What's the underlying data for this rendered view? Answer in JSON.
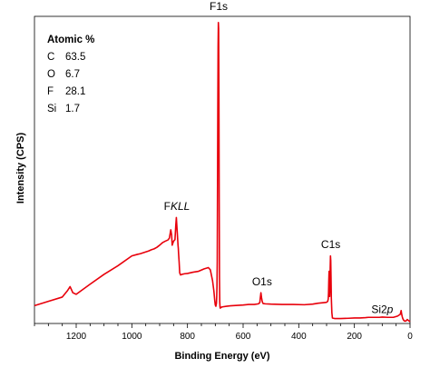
{
  "chart_data": {
    "type": "line",
    "title": "",
    "xlabel": "Binding Energy (eV)",
    "ylabel": "Intensity (CPS)",
    "x_reversed": true,
    "xlim": [
      1350,
      0
    ],
    "ylim": [
      0,
      100
    ],
    "y_ticks_labeled": false,
    "x_ticks": [
      1200,
      1000,
      800,
      600,
      400,
      200,
      0
    ],
    "x_tick_labels": [
      "1200",
      "1000",
      "800",
      "600",
      "400",
      "200",
      "0"
    ],
    "line_color": "#e8000b",
    "series": [
      {
        "x": [
          1350,
          1300,
          1250,
          1232,
          1222,
          1212,
          1200,
          1150,
          1100,
          1050,
          1000,
          980,
          970,
          960,
          950,
          940,
          930,
          920,
          910,
          900,
          890,
          880,
          870,
          865,
          860,
          857,
          855,
          850,
          845,
          842,
          840,
          838,
          836,
          834,
          833,
          832,
          830,
          828,
          825,
          820,
          810,
          800,
          780,
          760,
          740,
          725,
          718,
          710,
          705,
          702,
          700,
          698,
          696,
          695,
          694,
          693,
          692,
          691,
          690,
          689,
          688,
          687,
          686,
          685,
          684,
          683,
          682,
          680,
          675,
          660,
          640,
          620,
          600,
          580,
          560,
          545,
          540,
          538,
          536,
          534,
          532,
          530,
          528,
          520,
          500,
          460,
          420,
          380,
          350,
          330,
          310,
          300,
          296,
          294,
          293,
          292,
          291,
          290,
          289,
          288,
          287,
          286,
          285,
          284,
          283,
          281,
          279,
          270,
          250,
          220,
          200,
          180,
          160,
          150,
          130,
          110,
          100,
          80,
          60,
          45,
          35,
          32,
          30,
          28,
          26,
          24,
          20,
          15,
          10,
          5,
          0
        ],
        "y": [
          5.8,
          7.2,
          8.6,
          10.6,
          12.0,
          10.0,
          9.5,
          12.8,
          16.0,
          18.8,
          22.0,
          22.5,
          22.7,
          23.0,
          23.3,
          23.6,
          24.0,
          24.3,
          24.8,
          25.5,
          26.3,
          26.8,
          27.2,
          27.8,
          30.5,
          28.8,
          25.5,
          26.8,
          27.3,
          32.0,
          34.5,
          31.5,
          28.5,
          25.5,
          24.5,
          22.8,
          20.0,
          16.5,
          15.8,
          16.0,
          16.2,
          16.3,
          16.7,
          17.0,
          17.8,
          18.2,
          17.5,
          14.0,
          10.5,
          7.5,
          6.0,
          5.6,
          6.5,
          8.5,
          12.0,
          20.0,
          45.0,
          70.0,
          90.0,
          98.0,
          96.0,
          75.0,
          40.0,
          15.0,
          7.0,
          5.3,
          5.0,
          5.2,
          5.4,
          5.6,
          5.8,
          5.9,
          6.0,
          6.2,
          6.2,
          6.4,
          6.8,
          8.5,
          10.0,
          8.5,
          7.5,
          6.8,
          6.5,
          6.4,
          6.3,
          6.2,
          6.2,
          6.1,
          6.3,
          6.6,
          6.8,
          6.9,
          7.2,
          8.0,
          10.0,
          14.0,
          17.0,
          12.5,
          8.8,
          11.5,
          18.0,
          22.0,
          20.5,
          15.0,
          8.5,
          3.5,
          1.8,
          1.6,
          1.6,
          1.7,
          1.8,
          1.8,
          1.9,
          2.0,
          2.0,
          2.0,
          2.1,
          2.0,
          2.0,
          2.4,
          3.0,
          4.2,
          3.0,
          2.2,
          1.6,
          1.2,
          0.8,
          0.8,
          1.3,
          0.9,
          0.6
        ]
      }
    ],
    "annotations": [
      {
        "text": "F1s",
        "x": 688,
        "y": 102
      },
      {
        "text": "C1s",
        "x": 285,
        "y": 24.5
      },
      {
        "text": "O1s",
        "x": 532,
        "y": 12.5
      },
      {
        "text": "Si2p",
        "x": 100,
        "y": 3.4
      },
      {
        "text": "FKLL",
        "x": 838,
        "y": 37
      }
    ],
    "composition": {
      "title": "Atomic %",
      "rows": [
        {
          "element": "C",
          "value": "63.5"
        },
        {
          "element": "O",
          "value": "6.7"
        },
        {
          "element": "F",
          "value": "28.1"
        },
        {
          "element": "Si",
          "value": "1.7"
        }
      ]
    }
  }
}
